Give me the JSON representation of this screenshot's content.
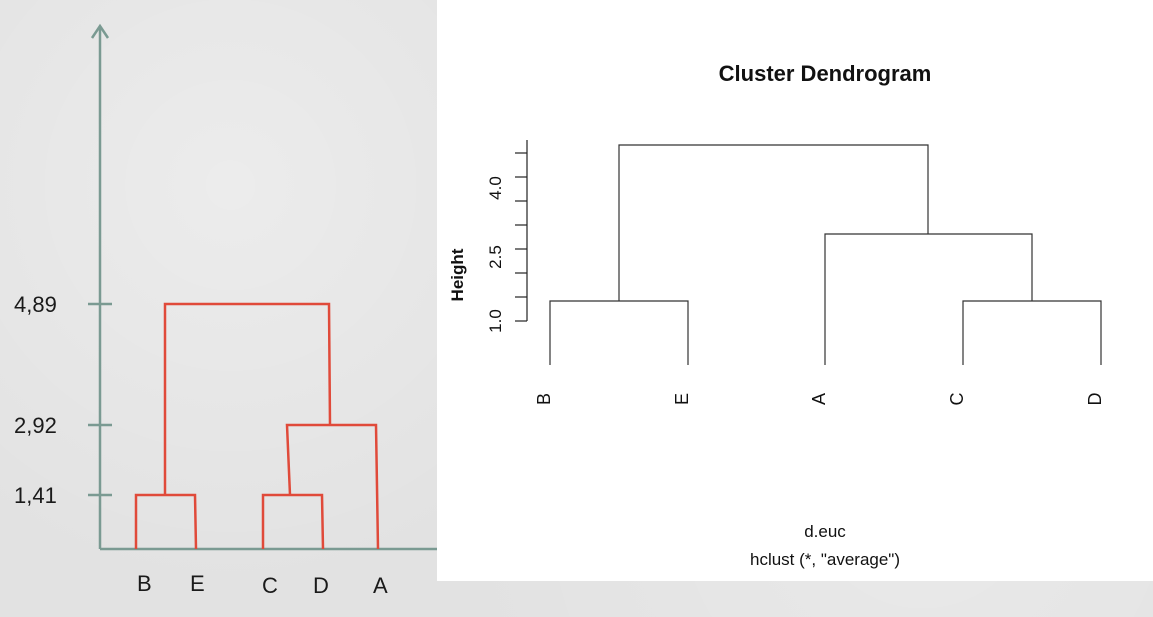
{
  "left_diagram": {
    "axis_color": "#7a9a92",
    "link_color": "#e04a3a",
    "ticks": [
      {
        "label": "4,89",
        "value": 4.89
      },
      {
        "label": "2,92",
        "value": 2.92
      },
      {
        "label": "1,41",
        "value": 1.41
      }
    ],
    "leaves": [
      "B",
      "E",
      "C",
      "D",
      "A"
    ]
  },
  "right_diagram": {
    "title": "Cluster Dendrogram",
    "ylabel": "Height",
    "xlabel": "d.euc",
    "subtitle": "hclust (*, \"average\")",
    "ticks": [
      {
        "label": "1.0",
        "value": 1.0
      },
      {
        "label": "2.5",
        "value": 2.5
      },
      {
        "label": "4.0",
        "value": 4.0
      }
    ],
    "leaves": [
      "B",
      "E",
      "A",
      "C",
      "D"
    ]
  },
  "chart_data": [
    {
      "type": "dendrogram",
      "leaves": [
        "B",
        "E",
        "C",
        "D",
        "A"
      ],
      "merges": [
        {
          "left": "B",
          "right": "E",
          "height": 1.41
        },
        {
          "left": "C",
          "right": "D",
          "height": 1.41
        },
        {
          "left": "C+D",
          "right": "A",
          "height": 2.92
        },
        {
          "left": "B+E",
          "right": "C+D+A",
          "height": 4.89
        }
      ],
      "y_ticks": [
        1.41,
        2.92,
        4.89
      ]
    },
    {
      "type": "dendrogram",
      "title": "Cluster Dendrogram",
      "ylabel": "Height",
      "xlabel": "d.euc",
      "leaves": [
        "B",
        "E",
        "A",
        "C",
        "D"
      ],
      "merges": [
        {
          "left": "B",
          "right": "E",
          "height": 1.41
        },
        {
          "left": "C",
          "right": "D",
          "height": 1.41
        },
        {
          "left": "A",
          "right": "C+D",
          "height": 2.92
        },
        {
          "left": "B+E",
          "right": "A+C+D",
          "height": 4.89
        }
      ],
      "y_ticks": [
        1.0,
        2.5,
        4.0
      ]
    }
  ]
}
